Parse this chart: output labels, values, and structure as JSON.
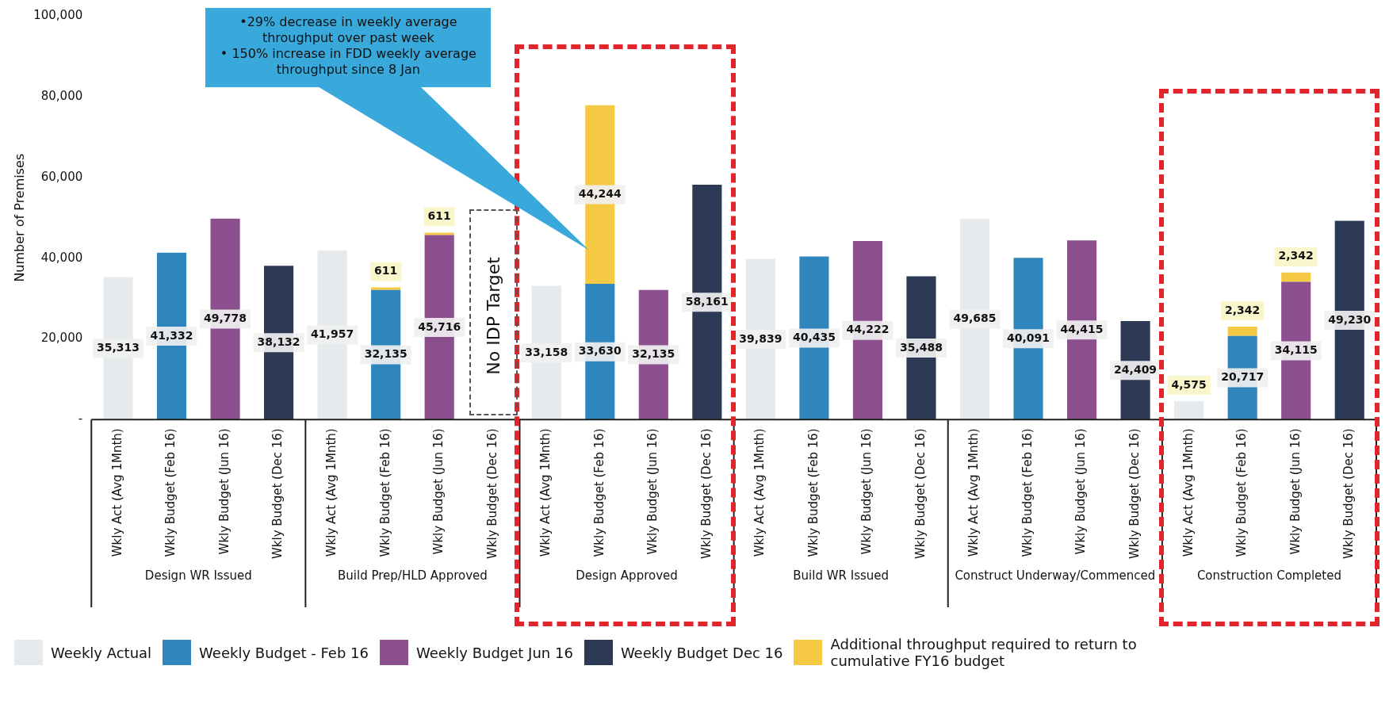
{
  "chart_data": {
    "type": "bar",
    "stacked": true,
    "ylabel": "Number of Premises",
    "categories": [
      "Wkly Act (Avg 1Mnth)",
      "Wkly Budget (Feb 16)",
      "Wkly Budget (Jun 16)",
      "Wkly Budget (Dec 16)",
      "Wkly Act (Avg 1Mnth)",
      "Wkly Budget (Feb 16)",
      "Wkly Budget (Jun 16)",
      "Wkly Budget (Dec 16)",
      "Wkly Act (Avg 1Mnth)",
      "Wkly Budget (Feb 16)",
      "Wkly Budget (Jun 16)",
      "Wkly Budget (Dec 16)",
      "Wkly Act (Avg 1Mnth)",
      "Wkly Budget (Feb 16)",
      "Wkly Budget (Jun 16)",
      "Wkly Budget (Dec 16)",
      "Wkly Act (Avg 1Mnth)",
      "Wkly Budget (Feb 16)",
      "Wkly Budget (Jun 16)",
      "Wkly Budget (Dec 16)",
      "Wkly Act (Avg 1Mnth)",
      "Wkly Budget (Feb 16)",
      "Wkly Budget (Jun 16)",
      "Wkly Budget (Dec 16)"
    ],
    "series": [
      {
        "name": "Weekly Actual",
        "color": "#e6eaec",
        "values": [
          35313,
          null,
          null,
          null,
          41957,
          null,
          null,
          null,
          33158,
          null,
          null,
          null,
          39839,
          null,
          null,
          null,
          49685,
          null,
          null,
          null,
          4575,
          null,
          null,
          null
        ],
        "value_labels": [
          "35,313",
          null,
          null,
          null,
          "41,957",
          null,
          null,
          null,
          "33,158",
          null,
          null,
          null,
          "39,839",
          null,
          null,
          null,
          "49,685",
          null,
          null,
          null,
          "4,575",
          null,
          null,
          null
        ]
      },
      {
        "name": "Weekly Budget - Feb 16",
        "color": "#2f86bd",
        "values": [
          null,
          41332,
          null,
          null,
          null,
          32135,
          null,
          null,
          null,
          33630,
          null,
          null,
          null,
          40435,
          null,
          null,
          null,
          40091,
          null,
          null,
          null,
          20717,
          null,
          null
        ],
        "value_labels": [
          null,
          "41,332",
          null,
          null,
          null,
          "32,135",
          null,
          null,
          null,
          "33,630",
          null,
          null,
          null,
          "40,435",
          null,
          null,
          null,
          "40,091",
          null,
          null,
          null,
          "20,717",
          null,
          null
        ]
      },
      {
        "name": "Weekly Budget Jun 16",
        "color": "#8a4f8c",
        "values": [
          null,
          null,
          49778,
          null,
          null,
          null,
          45716,
          null,
          null,
          null,
          32135,
          null,
          null,
          null,
          44222,
          null,
          null,
          null,
          44415,
          null,
          null,
          null,
          34115,
          null
        ],
        "value_labels": [
          null,
          null,
          "49,778",
          null,
          null,
          null,
          "45,716",
          null,
          null,
          null,
          "32,135",
          null,
          null,
          null,
          "44,222",
          null,
          null,
          null,
          "44,415",
          null,
          null,
          null,
          "34,115",
          null
        ]
      },
      {
        "name": "Weekly Budget Dec 16",
        "color": "#2c3a56",
        "values": [
          null,
          null,
          null,
          38132,
          null,
          null,
          null,
          null,
          null,
          null,
          null,
          58161,
          null,
          null,
          null,
          35488,
          null,
          null,
          null,
          24409,
          null,
          null,
          null,
          49230
        ],
        "value_labels": [
          null,
          null,
          null,
          "38,132",
          null,
          null,
          null,
          null,
          null,
          null,
          null,
          "58,161",
          null,
          null,
          null,
          "35,488",
          null,
          null,
          null,
          "24,409",
          null,
          null,
          null,
          "49,230"
        ]
      },
      {
        "name": "Additional throughput required to return to cumulative FY16 budget",
        "color": "#f6c945",
        "values": [
          null,
          null,
          null,
          null,
          null,
          611,
          611,
          null,
          null,
          44244,
          null,
          null,
          null,
          null,
          null,
          null,
          null,
          null,
          null,
          null,
          null,
          2342,
          2342,
          null
        ],
        "value_labels": [
          null,
          null,
          null,
          null,
          null,
          "611",
          "611",
          null,
          null,
          "44,244",
          null,
          null,
          null,
          null,
          null,
          null,
          null,
          null,
          null,
          null,
          null,
          "2,342",
          "2,342",
          null
        ]
      }
    ],
    "ylim": [
      0,
      100000
    ],
    "yticks": [
      {
        "value": 0,
        "label": "-"
      },
      {
        "value": 20000,
        "label": "20,000"
      },
      {
        "value": 40000,
        "label": "40,000"
      },
      {
        "value": 60000,
        "label": "60,000"
      },
      {
        "value": 80000,
        "label": "80,000"
      },
      {
        "value": 100000,
        "label": "100,000"
      }
    ],
    "grid": false,
    "legend": "bottom left",
    "annotations": [
      "•29% decrease in weekly average throughput over past week",
      "• 150% increase in FDD weekly average throughput since 8 Jan",
      "No IDP Target",
      "Design WR Issued",
      "Build Prep/HLD Approved",
      "Design Approved",
      "Build WR Issued",
      "Construct Underway/Commenced",
      "Construction Completed"
    ]
  }
}
